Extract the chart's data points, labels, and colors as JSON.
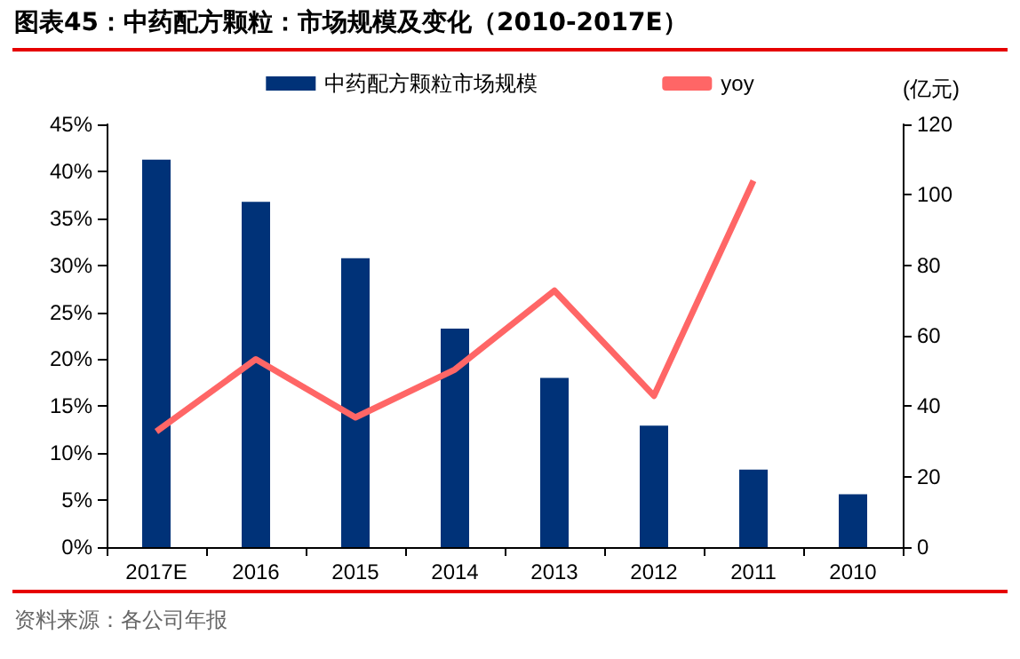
{
  "chart_data": {
    "type": "bar",
    "title": "图表45：中药配方颗粒：市场规模及变化（2010-2017E）",
    "y2label": "(亿元)",
    "annotations": [
      "资料来源：各公司年报"
    ],
    "categories": [
      "2017E",
      "2016",
      "2015",
      "2014",
      "2013",
      "2012",
      "2011",
      "2010"
    ],
    "series": [
      {
        "name": "中药配方颗粒市场规模",
        "axis": "y2",
        "color": "#003278",
        "values": [
          110,
          98,
          82,
          62,
          48,
          34.5,
          22,
          15
        ]
      },
      {
        "name": "yoy",
        "type": "line",
        "color": "#ff6666",
        "values": [
          12.3,
          20,
          13.8,
          18.9,
          27.3,
          16.1,
          39,
          null
        ]
      }
    ],
    "ylim": [
      0,
      45
    ],
    "yticks": [
      {
        "value": 0,
        "label": "0%"
      },
      {
        "value": 5,
        "label": "5%"
      },
      {
        "value": 10,
        "label": "10%"
      },
      {
        "value": 15,
        "label": "15%"
      },
      {
        "value": 20,
        "label": "20%"
      },
      {
        "value": 25,
        "label": "25%"
      },
      {
        "value": 30,
        "label": "30%"
      },
      {
        "value": 35,
        "label": "35%"
      },
      {
        "value": 40,
        "label": "40%"
      },
      {
        "value": 45,
        "label": "45%"
      }
    ],
    "y2lim": [
      0,
      120
    ],
    "y2ticks": [
      0,
      20,
      40,
      60,
      80,
      100,
      120
    ],
    "grid": false,
    "legend": "top",
    "marker": "none"
  }
}
